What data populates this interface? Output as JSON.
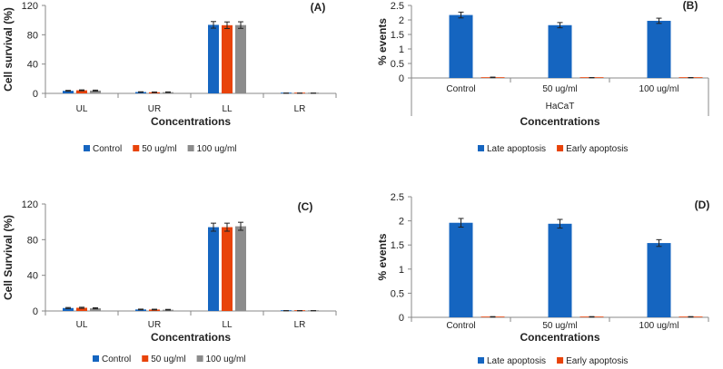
{
  "colors": {
    "control": "#1565C0",
    "dose50": "#E8430A",
    "dose100": "#8C8C8C",
    "late": "#1565C0",
    "early": "#E8430A",
    "axis": "#555555",
    "grid": "#d9d9d9",
    "text": "#222222"
  },
  "chart_data": [
    {
      "id": "A",
      "label": "(A)",
      "type": "bar",
      "ylabel": "Cell survival (%)",
      "xlabel": "Concentrations",
      "categories": [
        "UL",
        "UR",
        "LL",
        "LR"
      ],
      "ylim": [
        0,
        120
      ],
      "yticks": [
        0,
        40,
        80,
        120
      ],
      "legend_position": "bottom",
      "series": [
        {
          "name": "Control",
          "color_key": "control",
          "values": [
            3.5,
            1.8,
            93.5,
            0.3
          ],
          "errors": [
            0.6,
            0.4,
            4.5,
            0.1
          ]
        },
        {
          "name": "50 ug/ml",
          "color_key": "dose50",
          "values": [
            4.2,
            1.5,
            93.0,
            0.3
          ],
          "errors": [
            0.6,
            0.4,
            4.5,
            0.1
          ]
        },
        {
          "name": "100 ug/ml",
          "color_key": "dose100",
          "values": [
            3.8,
            1.6,
            93.2,
            0.3
          ],
          "errors": [
            0.7,
            0.4,
            4.5,
            0.1
          ]
        }
      ]
    },
    {
      "id": "B",
      "label": "(B)",
      "type": "bar",
      "ylabel": "% events",
      "xlabel": "Concentrations",
      "group_label": "HaCaT",
      "categories": [
        "Control",
        "50 ug/ml",
        "100 ug/ml"
      ],
      "ylim": [
        0,
        2.5
      ],
      "yticks": [
        0,
        0.5,
        1,
        1.5,
        2,
        2.5
      ],
      "ytick_labels": [
        "0",
        "0.5",
        "1",
        "1.5",
        "2",
        "2.5"
      ],
      "legend_position": "bottom",
      "series": [
        {
          "name": "Late apoptosis",
          "color_key": "late",
          "values": [
            2.17,
            1.82,
            1.97
          ],
          "errors": [
            0.1,
            0.09,
            0.09
          ]
        },
        {
          "name": "Early apoptosis",
          "color_key": "early",
          "values": [
            0.02,
            0.01,
            0.01
          ],
          "errors": [
            0.01,
            0.005,
            0.005
          ]
        }
      ]
    },
    {
      "id": "C",
      "label": "(C)",
      "type": "bar",
      "ylabel": "Cell Survival (%)",
      "xlabel": "Concentrations",
      "categories": [
        "UL",
        "UR",
        "LL",
        "LR"
      ],
      "ylim": [
        0,
        120
      ],
      "yticks": [
        0,
        40,
        80,
        120
      ],
      "legend_position": "bottom",
      "series": [
        {
          "name": "Control",
          "color_key": "control",
          "values": [
            3.3,
            1.7,
            94.0,
            0.3
          ],
          "errors": [
            0.6,
            0.4,
            4.5,
            0.1
          ]
        },
        {
          "name": "50 ug/ml",
          "color_key": "dose50",
          "values": [
            3.6,
            1.6,
            94.0,
            0.3
          ],
          "errors": [
            0.6,
            0.4,
            4.5,
            0.1
          ]
        },
        {
          "name": "100 ug/ml",
          "color_key": "dose100",
          "values": [
            3.0,
            1.4,
            95.0,
            0.3
          ],
          "errors": [
            0.6,
            0.4,
            4.5,
            0.1
          ]
        }
      ]
    },
    {
      "id": "D",
      "label": "(D)",
      "type": "bar",
      "ylabel": "% events",
      "xlabel": "Concentrations",
      "categories": [
        "Control",
        "50 ug/ml",
        "100 ug/ml"
      ],
      "ylim": [
        0,
        2.5
      ],
      "yticks": [
        0,
        0.5,
        1,
        1.5,
        2,
        2.5
      ],
      "ytick_labels": [
        "0",
        "0.5",
        "1",
        "1.5",
        "2",
        "2.5"
      ],
      "legend_position": "bottom",
      "series": [
        {
          "name": "Late apoptosis",
          "color_key": "late",
          "values": [
            1.96,
            1.94,
            1.54
          ],
          "errors": [
            0.09,
            0.09,
            0.07
          ]
        },
        {
          "name": "Early apoptosis",
          "color_key": "early",
          "values": [
            0.01,
            0.01,
            0.01
          ],
          "errors": [
            0.005,
            0.005,
            0.005
          ]
        }
      ]
    }
  ]
}
